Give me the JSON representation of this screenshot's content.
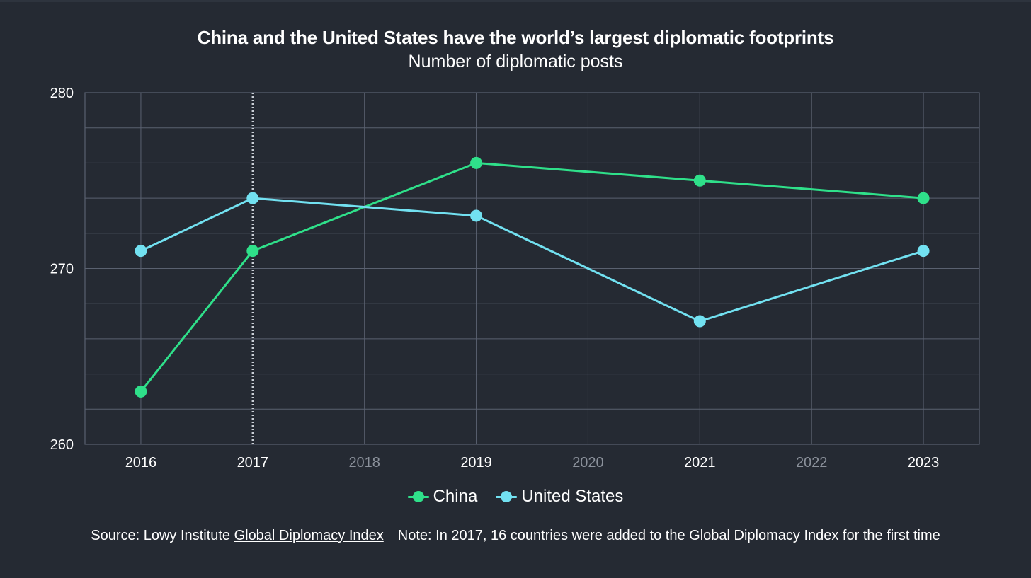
{
  "chart_data": {
    "type": "line",
    "title": "China and the United States have the world’s largest diplomatic footprints",
    "subtitle": "Number of diplomatic posts",
    "x": [
      2016,
      2017,
      2018,
      2019,
      2020,
      2021,
      2022,
      2023
    ],
    "x_tick_labels": [
      "2016",
      "2017",
      "2018",
      "2019",
      "2020",
      "2021",
      "2022",
      "2023"
    ],
    "x_tick_emphasis": [
      true,
      true,
      false,
      true,
      false,
      true,
      false,
      true
    ],
    "y_tick_labels": [
      "280",
      "270",
      "260"
    ],
    "ylim": [
      260,
      280
    ],
    "y_ticks": [
      260,
      270,
      280
    ],
    "y_minor_step": 2,
    "grid": true,
    "legend_position": "bottom-center",
    "reference_line": {
      "x": 2017,
      "style": "dotted"
    },
    "series": [
      {
        "name": "China",
        "color": "#2fe08a",
        "points": [
          [
            2016,
            263
          ],
          [
            2017,
            271
          ],
          [
            2019,
            276
          ],
          [
            2021,
            275
          ],
          [
            2023,
            274
          ]
        ]
      },
      {
        "name": "United States",
        "color": "#72e1f1",
        "points": [
          [
            2016,
            271
          ],
          [
            2017,
            274
          ],
          [
            2019,
            273
          ],
          [
            2021,
            267
          ],
          [
            2023,
            271
          ]
        ]
      }
    ]
  },
  "footer": {
    "source_prefix": "Source: Lowy Institute ",
    "source_link": "Global Diplomacy Index",
    "note": "Note: In 2017, 16 countries were added to the Global Diplomacy Index for the first time"
  },
  "colors": {
    "background": "#252a33",
    "grid": "#5a6170",
    "tick_emphasis": "#ffffff",
    "tick_muted": "#8b919b"
  }
}
